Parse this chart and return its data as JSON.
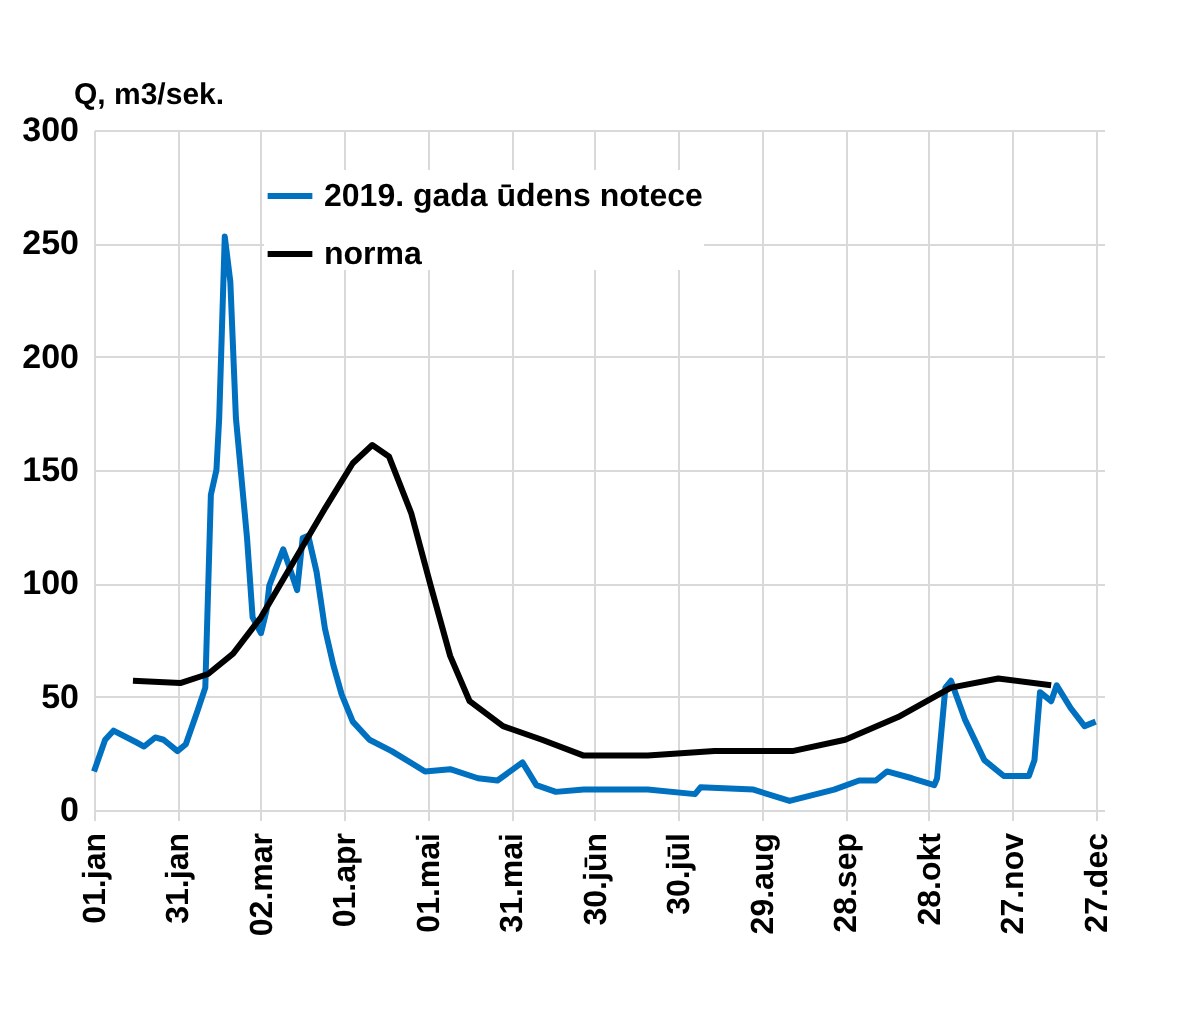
{
  "chart_data": {
    "type": "line",
    "ylabel": "Q, m3/sek.",
    "xlim": [
      "2019-01-01",
      "2019-12-30"
    ],
    "xticks": [
      {
        "value": "2019-01-01",
        "label": "01.jan"
      },
      {
        "value": "2019-01-31",
        "label": "31.jan"
      },
      {
        "value": "2019-03-02",
        "label": "02.mar"
      },
      {
        "value": "2019-04-01",
        "label": "01.apr"
      },
      {
        "value": "2019-05-01",
        "label": "01.mai"
      },
      {
        "value": "2019-05-31",
        "label": "31.mai"
      },
      {
        "value": "2019-06-30",
        "label": "30.jūn"
      },
      {
        "value": "2019-07-30",
        "label": "30.jūl"
      },
      {
        "value": "2019-08-29",
        "label": "29.aug"
      },
      {
        "value": "2019-09-28",
        "label": "28.sep"
      },
      {
        "value": "2019-10-28",
        "label": "28.okt"
      },
      {
        "value": "2019-11-27",
        "label": "27.nov"
      },
      {
        "value": "2019-12-27",
        "label": "27.dec"
      }
    ],
    "ylim": [
      0,
      300
    ],
    "yticks": [
      0,
      50,
      100,
      150,
      200,
      250,
      300
    ],
    "grid": true,
    "legend": "top left",
    "marker": "none",
    "line_style": "solid",
    "series": [
      {
        "name": "2019. gada ūdens notece",
        "color": "#0070c0",
        "x": [
          "2019-01-01",
          "2019-01-05",
          "2019-01-08",
          "2019-01-16",
          "2019-01-19",
          "2019-01-23",
          "2019-01-26",
          "2019-01-31",
          "2019-02-03",
          "2019-02-07",
          "2019-02-10",
          "2019-02-12",
          "2019-02-14",
          "2019-02-15",
          "2019-02-17",
          "2019-02-19",
          "2019-02-21",
          "2019-02-25",
          "2019-02-27",
          "2019-03-02",
          "2019-03-04",
          "2019-03-05",
          "2019-03-10",
          "2019-03-12",
          "2019-03-15",
          "2019-03-17",
          "2019-03-19",
          "2019-03-22",
          "2019-03-25",
          "2019-03-28",
          "2019-03-31",
          "2019-04-04",
          "2019-04-10",
          "2019-04-18",
          "2019-04-30",
          "2019-05-09",
          "2019-05-19",
          "2019-05-26",
          "2019-06-04",
          "2019-06-09",
          "2019-06-16",
          "2019-06-26",
          "2019-07-19",
          "2019-08-05",
          "2019-08-07",
          "2019-08-26",
          "2019-09-08",
          "2019-09-24",
          "2019-10-03",
          "2019-10-09",
          "2019-10-13",
          "2019-10-22",
          "2019-10-30",
          "2019-10-31",
          "2019-11-03",
          "2019-11-05",
          "2019-11-10",
          "2019-11-17",
          "2019-11-24",
          "2019-12-03",
          "2019-12-05",
          "2019-12-07",
          "2019-12-11",
          "2019-12-13",
          "2019-12-18",
          "2019-12-23",
          "2019-12-27"
        ],
        "values": [
          17,
          31,
          35,
          30,
          28,
          32,
          31,
          26,
          29,
          43,
          54,
          139,
          150,
          173,
          253,
          233,
          173,
          120,
          85,
          78,
          88,
          99,
          115,
          108,
          97,
          120,
          121,
          105,
          80,
          64,
          51,
          39,
          31,
          26,
          17,
          18,
          14,
          13,
          21,
          11,
          8,
          9,
          9,
          7,
          10,
          9,
          4,
          9,
          13,
          13,
          17,
          14,
          11,
          14,
          54,
          57,
          40,
          22,
          15,
          15,
          22,
          52,
          48,
          55,
          45,
          37,
          39
        ]
      },
      {
        "name": "norma",
        "color": "#000000",
        "x": [
          "2019-01-15",
          "2019-02-01",
          "2019-02-11",
          "2019-02-20",
          "2019-03-02",
          "2019-03-13",
          "2019-03-25",
          "2019-04-04",
          "2019-04-11",
          "2019-04-17",
          "2019-04-25",
          "2019-05-02",
          "2019-05-09",
          "2019-05-16",
          "2019-05-28",
          "2019-06-11",
          "2019-06-26",
          "2019-07-19",
          "2019-08-12",
          "2019-09-09",
          "2019-09-28",
          "2019-10-17",
          "2019-11-05",
          "2019-11-22",
          "2019-12-11"
        ],
        "values": [
          57,
          56,
          60,
          69,
          85,
          108,
          133,
          153,
          161,
          156,
          131,
          99,
          68,
          48,
          37,
          31,
          24,
          24,
          26,
          26,
          31,
          41,
          54,
          58,
          55
        ]
      }
    ]
  }
}
